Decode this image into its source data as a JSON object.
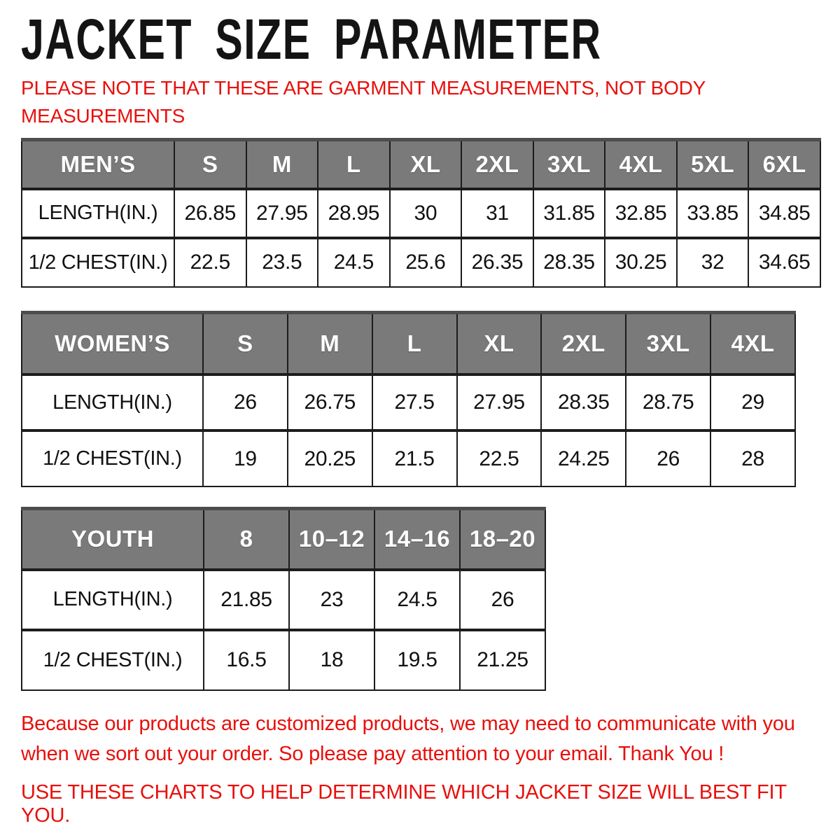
{
  "header": {
    "title": "JACKET SIZE PARAMETER",
    "note_lines": [
      "PLEASE NOTE THAT THESE ARE GARMENT MEASUREMENTS, NOT BODY",
      "MEASUREMENTS"
    ]
  },
  "tables": {
    "mens": {
      "header": [
        "MEN’S",
        "S",
        "M",
        "L",
        "XL",
        "2XL",
        "3XL",
        "4XL",
        "5XL",
        "6XL"
      ],
      "rows": [
        {
          "label": "LENGTH(IN.)",
          "values": [
            "26.85",
            "27.95",
            "28.95",
            "30",
            "31",
            "31.85",
            "32.85",
            "33.85",
            "34.85"
          ]
        },
        {
          "label": "1/2 CHEST(IN.)",
          "values": [
            "22.5",
            "23.5",
            "24.5",
            "25.6",
            "26.35",
            "28.35",
            "30.25",
            "32",
            "34.65"
          ]
        }
      ]
    },
    "womens": {
      "header": [
        "WOMEN’S",
        "S",
        "M",
        "L",
        "XL",
        "2XL",
        "3XL",
        "4XL"
      ],
      "rows": [
        {
          "label": "LENGTH(IN.)",
          "values": [
            "26",
            "26.75",
            "27.5",
            "27.95",
            "28.35",
            "28.75",
            "29"
          ]
        },
        {
          "label": "1/2 CHEST(IN.)",
          "values": [
            "19",
            "20.25",
            "21.5",
            "22.5",
            "24.25",
            "26",
            "28"
          ]
        }
      ]
    },
    "youth": {
      "header": [
        "YOUTH",
        "8",
        "10–12",
        "14–16",
        "18–20"
      ],
      "rows": [
        {
          "label": "LENGTH(IN.)",
          "values": [
            "21.85",
            "23",
            "24.5",
            "26"
          ]
        },
        {
          "label": "1/2 CHEST(IN.)",
          "values": [
            "16.5",
            "18",
            "19.5",
            "21.25"
          ]
        }
      ]
    }
  },
  "footer": {
    "paragraph_lines": [
      "Because our products are customized products, we may need to communicate with you",
      "when we sort out your order. So please pay attention to your email. Thank You !"
    ],
    "advice_line": "USE THESE CHARTS TO HELP DETERMINE WHICH JACKET SIZE WILL BEST FIT YOU."
  },
  "colors": {
    "accent_red": "#e8100c",
    "header_gray": "#7a7a7a",
    "border_dark": "#1c1c1c",
    "text": "#141414"
  }
}
